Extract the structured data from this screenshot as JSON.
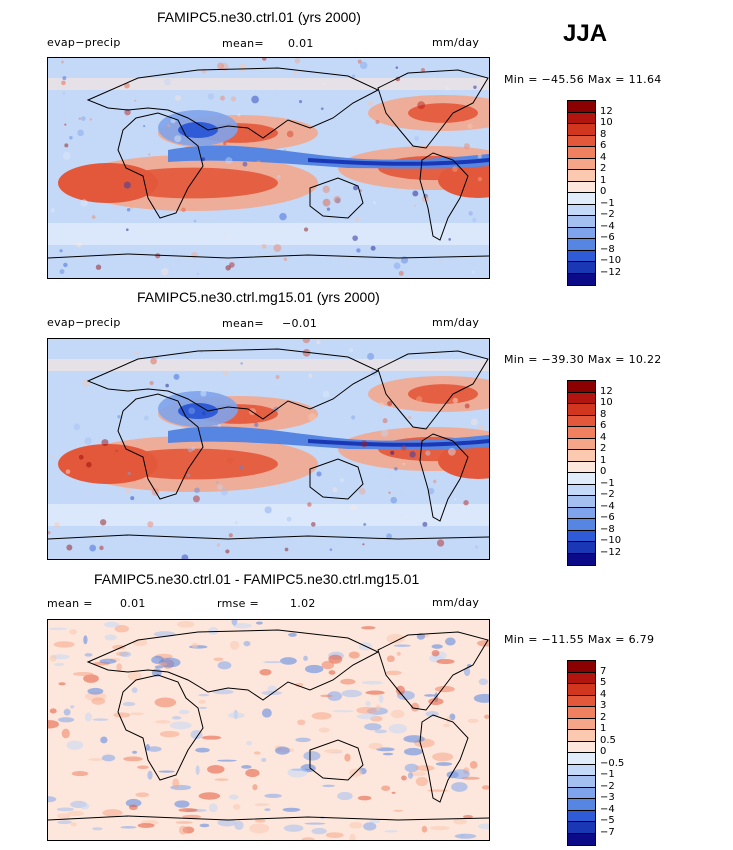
{
  "season": "JJA",
  "chart_data": [
    {
      "type": "heatmap",
      "title": "FAMIPC5.ne30.ctrl.01 (yrs 2000)",
      "variable": "evap−precip",
      "stat_label": "mean=",
      "stat_value": "0.01",
      "units": "mm/day",
      "range_text": "Min = −45.56 Max =   11.64",
      "colorbar": {
        "levels": [
          "12",
          "10",
          "8",
          "6",
          "4",
          "2",
          "1",
          "0",
          "−1",
          "−2",
          "−4",
          "−6",
          "−8",
          "−10",
          "−12"
        ],
        "colors": [
          "#8b0000",
          "#b2150f",
          "#d3361f",
          "#e3583a",
          "#ef8060",
          "#f6a688",
          "#fbc8b0",
          "#fde7dc",
          "#e1ecfb",
          "#c4d8f7",
          "#a4c0f1",
          "#7fa4eb",
          "#5685e2",
          "#2f5cd6",
          "#1a37b5",
          "#0b0b8a"
        ]
      }
    },
    {
      "type": "heatmap",
      "title": "FAMIPC5.ne30.ctrl.mg15.01 (yrs 2000)",
      "variable": "evap−precip",
      "stat_label": "mean=",
      "stat_value": "−0.01",
      "units": "mm/day",
      "range_text": "Min = −39.30 Max =   10.22",
      "colorbar": {
        "levels": [
          "12",
          "10",
          "8",
          "6",
          "4",
          "2",
          "1",
          "0",
          "−1",
          "−2",
          "−4",
          "−6",
          "−8",
          "−10",
          "−12"
        ],
        "colors": [
          "#8b0000",
          "#b2150f",
          "#d3361f",
          "#e3583a",
          "#ef8060",
          "#f6a688",
          "#fbc8b0",
          "#fde7dc",
          "#e1ecfb",
          "#c4d8f7",
          "#a4c0f1",
          "#7fa4eb",
          "#5685e2",
          "#2f5cd6",
          "#1a37b5",
          "#0b0b8a"
        ]
      }
    },
    {
      "type": "heatmap",
      "title": "FAMIPC5.ne30.ctrl.01 - FAMIPC5.ne30.ctrl.mg15.01",
      "stat_label": "mean =",
      "stat_value": "0.01",
      "rmse_label": "rmse =",
      "rmse_value": "1.02",
      "units": "mm/day",
      "range_text": "Min = −11.55 Max =    6.79",
      "colorbar": {
        "levels": [
          "7",
          "5",
          "4",
          "3",
          "2",
          "1",
          "0.5",
          "0",
          "−0.5",
          "−1",
          "−2",
          "−3",
          "−4",
          "−5",
          "−7"
        ],
        "colors": [
          "#8b0000",
          "#b2150f",
          "#d3361f",
          "#e3583a",
          "#ef8060",
          "#f6a688",
          "#fbc8b0",
          "#fde7dc",
          "#e1ecfb",
          "#c4d8f7",
          "#a4c0f1",
          "#7fa4eb",
          "#5685e2",
          "#2f5cd6",
          "#1a37b5",
          "#0b0b8a"
        ]
      }
    }
  ]
}
